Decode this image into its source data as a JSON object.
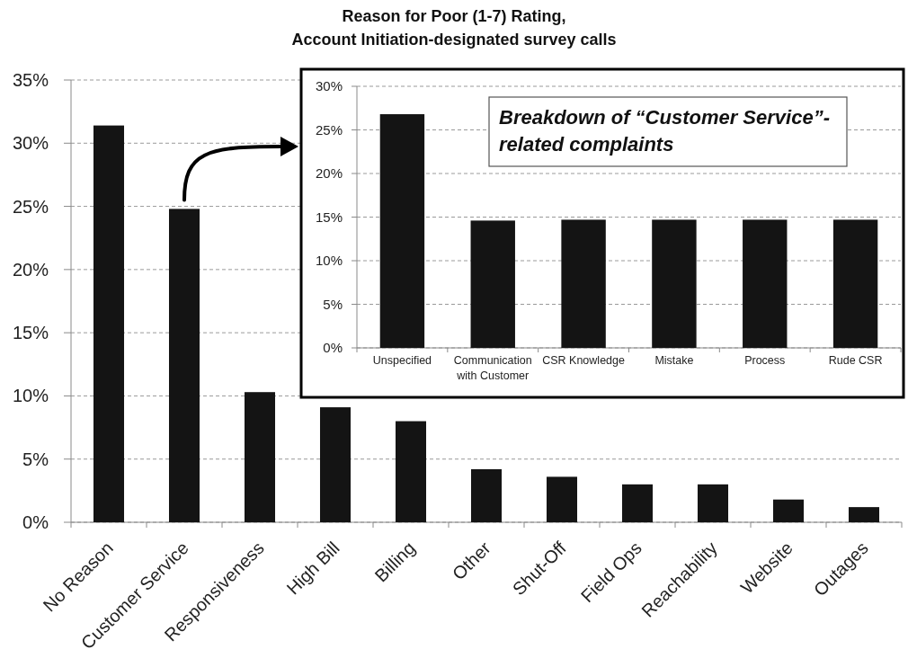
{
  "chart_data": [
    {
      "type": "bar",
      "title": "Reason for Poor (1-7) Rating,\nAccount Initiation-designated survey calls",
      "categories": [
        "No Reason",
        "Customer Service",
        "Responsiveness",
        "High Bill",
        "Billing",
        "Other",
        "Shut-Off",
        "Field Ops",
        "Reachability",
        "Website",
        "Outages"
      ],
      "values": [
        31.4,
        24.8,
        10.3,
        9.1,
        8.0,
        4.2,
        3.6,
        3.0,
        3.0,
        1.8,
        1.2
      ],
      "color": "#141414",
      "ylim": [
        0,
        35
      ],
      "yticks": [
        {
          "value": 0,
          "label": "0%"
        },
        {
          "value": 5,
          "label": "5%"
        },
        {
          "value": 10,
          "label": "10%"
        },
        {
          "value": 15,
          "label": "15%"
        },
        {
          "value": 20,
          "label": "20%"
        },
        {
          "value": 25,
          "label": "25%"
        },
        {
          "value": 30,
          "label": "30%"
        },
        {
          "value": 35,
          "label": "35%"
        }
      ],
      "grid": "y"
    },
    {
      "type": "bar",
      "title": "Breakdown of “Customer Service”-related complaints",
      "categories": [
        "Unspecified",
        "Communication with Customer",
        "CSR Knowledge",
        "Mistake",
        "Process",
        "Rude CSR"
      ],
      "values": [
        26.8,
        14.6,
        14.7,
        14.7,
        14.7,
        14.7
      ],
      "color": "#141414",
      "ylim": [
        0,
        30
      ],
      "yticks": [
        {
          "value": 0,
          "label": "0%"
        },
        {
          "value": 5,
          "label": "5%"
        },
        {
          "value": 10,
          "label": "10%"
        },
        {
          "value": 15,
          "label": "15%"
        },
        {
          "value": 20,
          "label": "20%"
        },
        {
          "value": 25,
          "label": "25%"
        },
        {
          "value": 30,
          "label": "30%"
        }
      ],
      "grid": "y"
    }
  ]
}
